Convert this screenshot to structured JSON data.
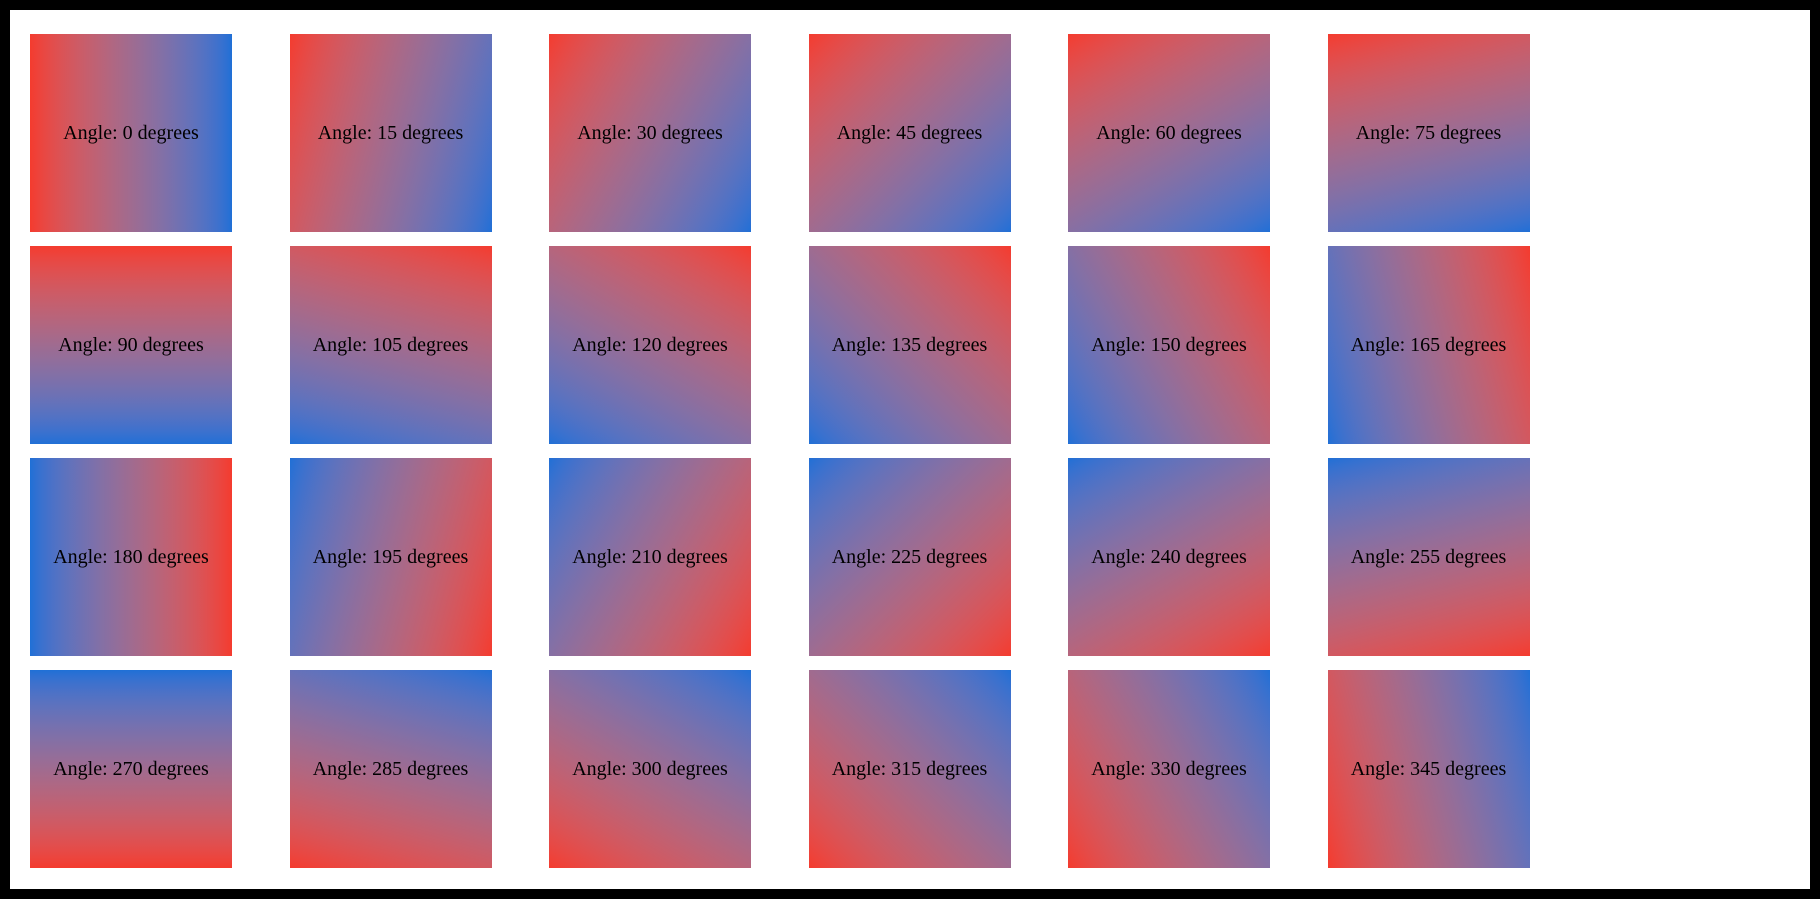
{
  "page": {
    "background_color": "#ffffff",
    "frame_color": "#000000",
    "label_color": "#000000"
  },
  "gradient": {
    "start_color": "#f43b2e",
    "end_color": "#1f70d6"
  },
  "tiles": [
    {
      "angle": 0,
      "label": "Angle: 0 degrees"
    },
    {
      "angle": 15,
      "label": "Angle: 15 degrees"
    },
    {
      "angle": 30,
      "label": "Angle: 30 degrees"
    },
    {
      "angle": 45,
      "label": "Angle: 45 degrees"
    },
    {
      "angle": 60,
      "label": "Angle: 60 degrees"
    },
    {
      "angle": 75,
      "label": "Angle: 75 degrees"
    },
    {
      "angle": 90,
      "label": "Angle: 90 degrees"
    },
    {
      "angle": 105,
      "label": "Angle: 105 degrees"
    },
    {
      "angle": 120,
      "label": "Angle: 120 degrees"
    },
    {
      "angle": 135,
      "label": "Angle: 135 degrees"
    },
    {
      "angle": 150,
      "label": "Angle: 150 degrees"
    },
    {
      "angle": 165,
      "label": "Angle: 165 degrees"
    },
    {
      "angle": 180,
      "label": "Angle: 180 degrees"
    },
    {
      "angle": 195,
      "label": "Angle: 195 degrees"
    },
    {
      "angle": 210,
      "label": "Angle: 210 degrees"
    },
    {
      "angle": 225,
      "label": "Angle: 225 degrees"
    },
    {
      "angle": 240,
      "label": "Angle: 240 degrees"
    },
    {
      "angle": 255,
      "label": "Angle: 255 degrees"
    },
    {
      "angle": 270,
      "label": "Angle: 270 degrees"
    },
    {
      "angle": 285,
      "label": "Angle: 285 degrees"
    },
    {
      "angle": 300,
      "label": "Angle: 300 degrees"
    },
    {
      "angle": 315,
      "label": "Angle: 315 degrees"
    },
    {
      "angle": 330,
      "label": "Angle: 330 degrees"
    },
    {
      "angle": 345,
      "label": "Angle: 345 degrees"
    }
  ]
}
